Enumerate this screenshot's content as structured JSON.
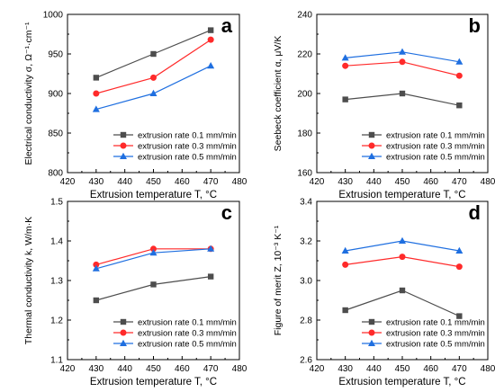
{
  "chart_data": [
    {
      "type": "line",
      "panel_label": "a",
      "xlabel": "Extrusion temperature T,  °C",
      "ylabel": "Electrical conductivity  σ, Ω⁻¹·cm⁻¹",
      "xlim": [
        420,
        480
      ],
      "ylim": [
        800,
        1000
      ],
      "xticks": [
        420,
        430,
        440,
        450,
        460,
        470,
        480
      ],
      "yticks": [
        800,
        850,
        900,
        950,
        1000
      ],
      "x": [
        430,
        450,
        470
      ],
      "legend_position": "bottom-right",
      "grid": false,
      "series": [
        {
          "name": "extrusion rate 0.1 mm/min",
          "values": [
            920,
            950,
            980
          ],
          "color": "#4d4d4d",
          "marker": "square"
        },
        {
          "name": "extrusion rate 0.3 mm/min",
          "values": [
            900,
            920,
            968
          ],
          "color": "#ff2a2a",
          "marker": "circle"
        },
        {
          "name": "extrusion rate 0.5 mm/min",
          "values": [
            880,
            900,
            935
          ],
          "color": "#1f6fe0",
          "marker": "triangle"
        }
      ]
    },
    {
      "type": "line",
      "panel_label": "b",
      "xlabel": "Extrusion temperature T,  °C",
      "ylabel": "Seebeck coefficient  α, μV/K",
      "xlim": [
        420,
        480
      ],
      "ylim": [
        160,
        240
      ],
      "xticks": [
        420,
        430,
        440,
        450,
        460,
        470,
        480
      ],
      "yticks": [
        160,
        180,
        200,
        220,
        240
      ],
      "x": [
        430,
        450,
        470
      ],
      "legend_position": "bottom-right",
      "grid": false,
      "series": [
        {
          "name": "extrusion rate 0.1 mm/min",
          "values": [
            197,
            200,
            194
          ],
          "color": "#4d4d4d",
          "marker": "square"
        },
        {
          "name": "extrusion rate 0.3 mm/min",
          "values": [
            214,
            216,
            209
          ],
          "color": "#ff2a2a",
          "marker": "circle"
        },
        {
          "name": "extrusion rate 0.5 mm/min",
          "values": [
            218,
            221,
            216
          ],
          "color": "#1f6fe0",
          "marker": "triangle"
        }
      ]
    },
    {
      "type": "line",
      "panel_label": "c",
      "xlabel": "Extrusion temperature T,  °C",
      "ylabel": "Thermal conductivity k, W/m·K",
      "xlim": [
        420,
        480
      ],
      "ylim": [
        1.1,
        1.5
      ],
      "xticks": [
        420,
        430,
        440,
        450,
        460,
        470,
        480
      ],
      "yticks": [
        1.1,
        1.2,
        1.3,
        1.4,
        1.5
      ],
      "x": [
        430,
        450,
        470
      ],
      "legend_position": "bottom-right",
      "grid": false,
      "series": [
        {
          "name": "extrusion rate 0.1 mm/min",
          "values": [
            1.25,
            1.29,
            1.31
          ],
          "color": "#4d4d4d",
          "marker": "square"
        },
        {
          "name": "extrusion rate 0.3 mm/min",
          "values": [
            1.34,
            1.38,
            1.38
          ],
          "color": "#ff2a2a",
          "marker": "circle"
        },
        {
          "name": "extrusion rate 0.5 mm/min",
          "values": [
            1.33,
            1.37,
            1.38
          ],
          "color": "#1f6fe0",
          "marker": "triangle"
        }
      ]
    },
    {
      "type": "line",
      "panel_label": "d",
      "xlabel": "Extrusion temperature T,  °C",
      "ylabel": "Figure of merit Z, 10⁻³ K⁻¹",
      "xlim": [
        420,
        480
      ],
      "ylim": [
        2.6,
        3.4
      ],
      "xticks": [
        420,
        430,
        440,
        450,
        460,
        470,
        480
      ],
      "yticks": [
        2.6,
        2.8,
        3.0,
        3.2,
        3.4
      ],
      "x": [
        430,
        450,
        470
      ],
      "legend_position": "bottom-right",
      "grid": false,
      "series": [
        {
          "name": "extrusion rate 0.1 mm/min",
          "values": [
            2.85,
            2.95,
            2.82
          ],
          "color": "#4d4d4d",
          "marker": "square"
        },
        {
          "name": "extrusion rate 0.3 mm/min",
          "values": [
            3.08,
            3.12,
            3.07
          ],
          "color": "#ff2a2a",
          "marker": "circle"
        },
        {
          "name": "extrusion rate 0.5 mm/min",
          "values": [
            3.15,
            3.2,
            3.15
          ],
          "color": "#1f6fe0",
          "marker": "triangle"
        }
      ]
    }
  ]
}
